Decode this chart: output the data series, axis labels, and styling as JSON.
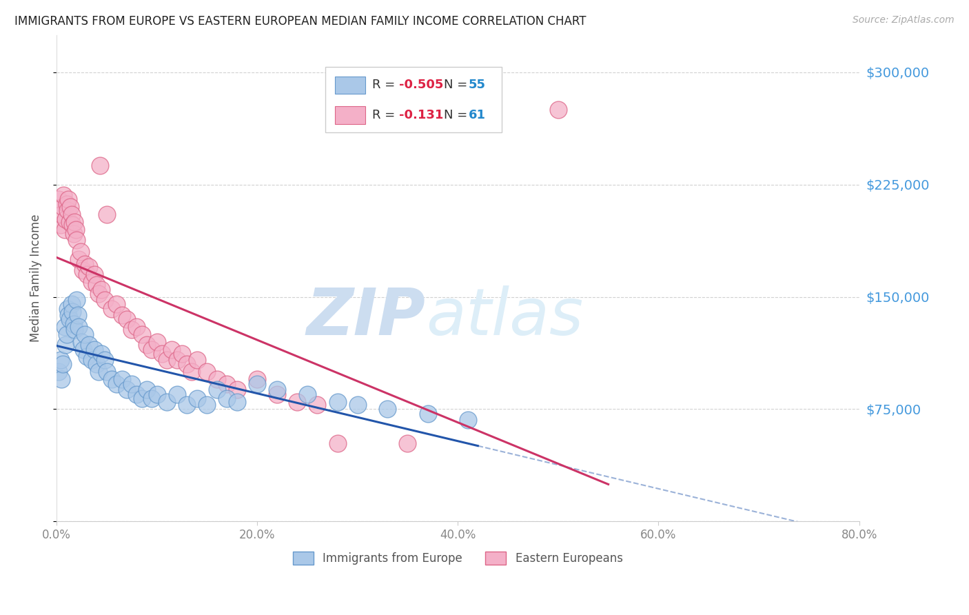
{
  "title": "IMMIGRANTS FROM EUROPE VS EASTERN EUROPEAN MEDIAN FAMILY INCOME CORRELATION CHART",
  "source": "Source: ZipAtlas.com",
  "ylabel": "Median Family Income",
  "background_color": "#ffffff",
  "grid_color": "#cccccc",
  "series": [
    {
      "name": "Immigrants from Europe",
      "R": -0.505,
      "N": 55,
      "color": "#aac8e8",
      "edge_color": "#6699cc",
      "line_color": "#2255aa",
      "points": [
        [
          0.2,
          100000
        ],
        [
          0.4,
          108000
        ],
        [
          0.5,
          95000
        ],
        [
          0.6,
          105000
        ],
        [
          0.8,
          130000
        ],
        [
          0.9,
          118000
        ],
        [
          1.0,
          125000
        ],
        [
          1.1,
          142000
        ],
        [
          1.2,
          138000
        ],
        [
          1.3,
          135000
        ],
        [
          1.5,
          145000
        ],
        [
          1.6,
          140000
        ],
        [
          1.7,
          132000
        ],
        [
          1.8,
          128000
        ],
        [
          2.0,
          148000
        ],
        [
          2.1,
          138000
        ],
        [
          2.2,
          130000
        ],
        [
          2.5,
          120000
        ],
        [
          2.7,
          115000
        ],
        [
          2.8,
          125000
        ],
        [
          3.0,
          110000
        ],
        [
          3.2,
          118000
        ],
        [
          3.5,
          108000
        ],
        [
          3.8,
          115000
        ],
        [
          4.0,
          105000
        ],
        [
          4.2,
          100000
        ],
        [
          4.5,
          112000
        ],
        [
          4.8,
          108000
        ],
        [
          5.0,
          100000
        ],
        [
          5.5,
          95000
        ],
        [
          6.0,
          92000
        ],
        [
          6.5,
          95000
        ],
        [
          7.0,
          88000
        ],
        [
          7.5,
          92000
        ],
        [
          8.0,
          85000
        ],
        [
          8.5,
          82000
        ],
        [
          9.0,
          88000
        ],
        [
          9.5,
          82000
        ],
        [
          10.0,
          85000
        ],
        [
          11.0,
          80000
        ],
        [
          12.0,
          85000
        ],
        [
          13.0,
          78000
        ],
        [
          14.0,
          82000
        ],
        [
          15.0,
          78000
        ],
        [
          16.0,
          88000
        ],
        [
          17.0,
          82000
        ],
        [
          18.0,
          80000
        ],
        [
          20.0,
          92000
        ],
        [
          22.0,
          88000
        ],
        [
          25.0,
          85000
        ],
        [
          28.0,
          80000
        ],
        [
          30.0,
          78000
        ],
        [
          33.0,
          75000
        ],
        [
          37.0,
          72000
        ],
        [
          41.0,
          68000
        ]
      ]
    },
    {
      "name": "Eastern Europeans",
      "R": -0.131,
      "N": 61,
      "color": "#f4b0c8",
      "edge_color": "#dd6688",
      "line_color": "#cc3366",
      "points": [
        [
          0.2,
          215000
        ],
        [
          0.4,
          198000
        ],
        [
          0.5,
          205000
        ],
        [
          0.6,
          210000
        ],
        [
          0.7,
          218000
        ],
        [
          0.8,
          195000
        ],
        [
          0.9,
          202000
        ],
        [
          1.0,
          212000
        ],
        [
          1.1,
          208000
        ],
        [
          1.2,
          215000
        ],
        [
          1.3,
          200000
        ],
        [
          1.4,
          210000
        ],
        [
          1.5,
          205000
        ],
        [
          1.6,
          198000
        ],
        [
          1.7,
          192000
        ],
        [
          1.8,
          200000
        ],
        [
          1.9,
          195000
        ],
        [
          2.0,
          188000
        ],
        [
          2.2,
          175000
        ],
        [
          2.4,
          180000
        ],
        [
          2.6,
          168000
        ],
        [
          2.8,
          172000
        ],
        [
          3.0,
          165000
        ],
        [
          3.2,
          170000
        ],
        [
          3.5,
          160000
        ],
        [
          3.8,
          165000
        ],
        [
          4.0,
          158000
        ],
        [
          4.2,
          152000
        ],
        [
          4.5,
          155000
        ],
        [
          4.8,
          148000
        ],
        [
          5.0,
          205000
        ],
        [
          5.5,
          142000
        ],
        [
          6.0,
          145000
        ],
        [
          6.5,
          138000
        ],
        [
          7.0,
          135000
        ],
        [
          7.5,
          128000
        ],
        [
          8.0,
          130000
        ],
        [
          8.5,
          125000
        ],
        [
          9.0,
          118000
        ],
        [
          9.5,
          115000
        ],
        [
          10.0,
          120000
        ],
        [
          10.5,
          112000
        ],
        [
          11.0,
          108000
        ],
        [
          11.5,
          115000
        ],
        [
          12.0,
          108000
        ],
        [
          12.5,
          112000
        ],
        [
          13.0,
          105000
        ],
        [
          13.5,
          100000
        ],
        [
          14.0,
          108000
        ],
        [
          15.0,
          100000
        ],
        [
          16.0,
          95000
        ],
        [
          17.0,
          92000
        ],
        [
          18.0,
          88000
        ],
        [
          20.0,
          95000
        ],
        [
          22.0,
          85000
        ],
        [
          24.0,
          80000
        ],
        [
          26.0,
          78000
        ],
        [
          28.0,
          52000
        ],
        [
          35.0,
          52000
        ],
        [
          50.0,
          275000
        ],
        [
          4.3,
          238000
        ]
      ]
    }
  ],
  "xlim": [
    0,
    80
  ],
  "ylim": [
    0,
    325000
  ],
  "yticks": [
    0,
    75000,
    150000,
    225000,
    300000
  ],
  "ytick_labels": [
    "",
    "$75,000",
    "$150,000",
    "$225,000",
    "$300,000"
  ],
  "xticks": [
    0,
    20,
    40,
    60,
    80
  ],
  "xtick_labels": [
    "0.0%",
    "20.0%",
    "40.0%",
    "60.0%",
    "80.0%"
  ],
  "right_yaxis_color": "#4499dd",
  "title_color": "#222222",
  "watermark_color": "#ddeeff",
  "legend_box_colors": [
    "#aac8e8",
    "#f4b0c8"
  ],
  "legend_r_color": "#dd2244",
  "legend_n_color": "#2288cc",
  "blue_line_x_end": 42,
  "pink_line_x_end": 55
}
